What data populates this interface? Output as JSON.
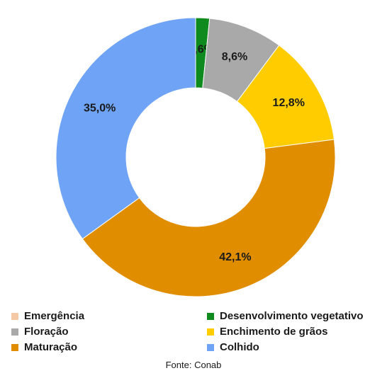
{
  "chart_data": {
    "type": "pie",
    "donut": true,
    "categories": [
      "Emergência",
      "Desenvolvimento vegetativo",
      "Floração",
      "Enchimento de grãos",
      "Maturação",
      "Colhido"
    ],
    "values": [
      0.0,
      1.6,
      8.6,
      12.8,
      42.1,
      35.0
    ],
    "labels": [
      "",
      "1,6%",
      "8,6%",
      "12,8%",
      "42,1%",
      "35,0%"
    ],
    "colors": [
      "#f6c9a6",
      "#0f8a1e",
      "#a9a9a9",
      "#ffcc00",
      "#e08e00",
      "#6ea3f5"
    ],
    "legend_position": "bottom"
  },
  "source": "Fonte: Conab"
}
